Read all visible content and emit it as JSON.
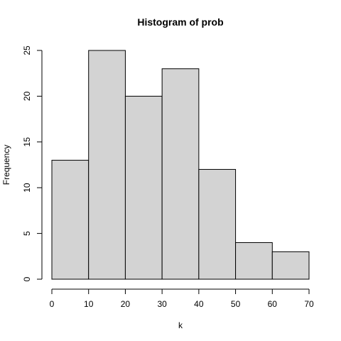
{
  "chart_data": {
    "type": "bar",
    "title": "Histogram of prob",
    "xlabel": "k",
    "ylabel": "Frequency",
    "bins": [
      {
        "start": 0,
        "end": 10,
        "count": 13
      },
      {
        "start": 10,
        "end": 20,
        "count": 25
      },
      {
        "start": 20,
        "end": 30,
        "count": 20
      },
      {
        "start": 30,
        "end": 40,
        "count": 23
      },
      {
        "start": 40,
        "end": 50,
        "count": 12
      },
      {
        "start": 50,
        "end": 60,
        "count": 4
      },
      {
        "start": 60,
        "end": 70,
        "count": 3
      }
    ],
    "xlim": [
      0,
      70
    ],
    "ylim": [
      0,
      25
    ],
    "xticks": [
      0,
      10,
      20,
      30,
      40,
      50,
      60,
      70
    ],
    "yticks": [
      0,
      5,
      10,
      15,
      20,
      25
    ],
    "grid": false,
    "legend": "none",
    "bar_fill": "#d3d3d3",
    "bar_stroke": "#000000"
  }
}
